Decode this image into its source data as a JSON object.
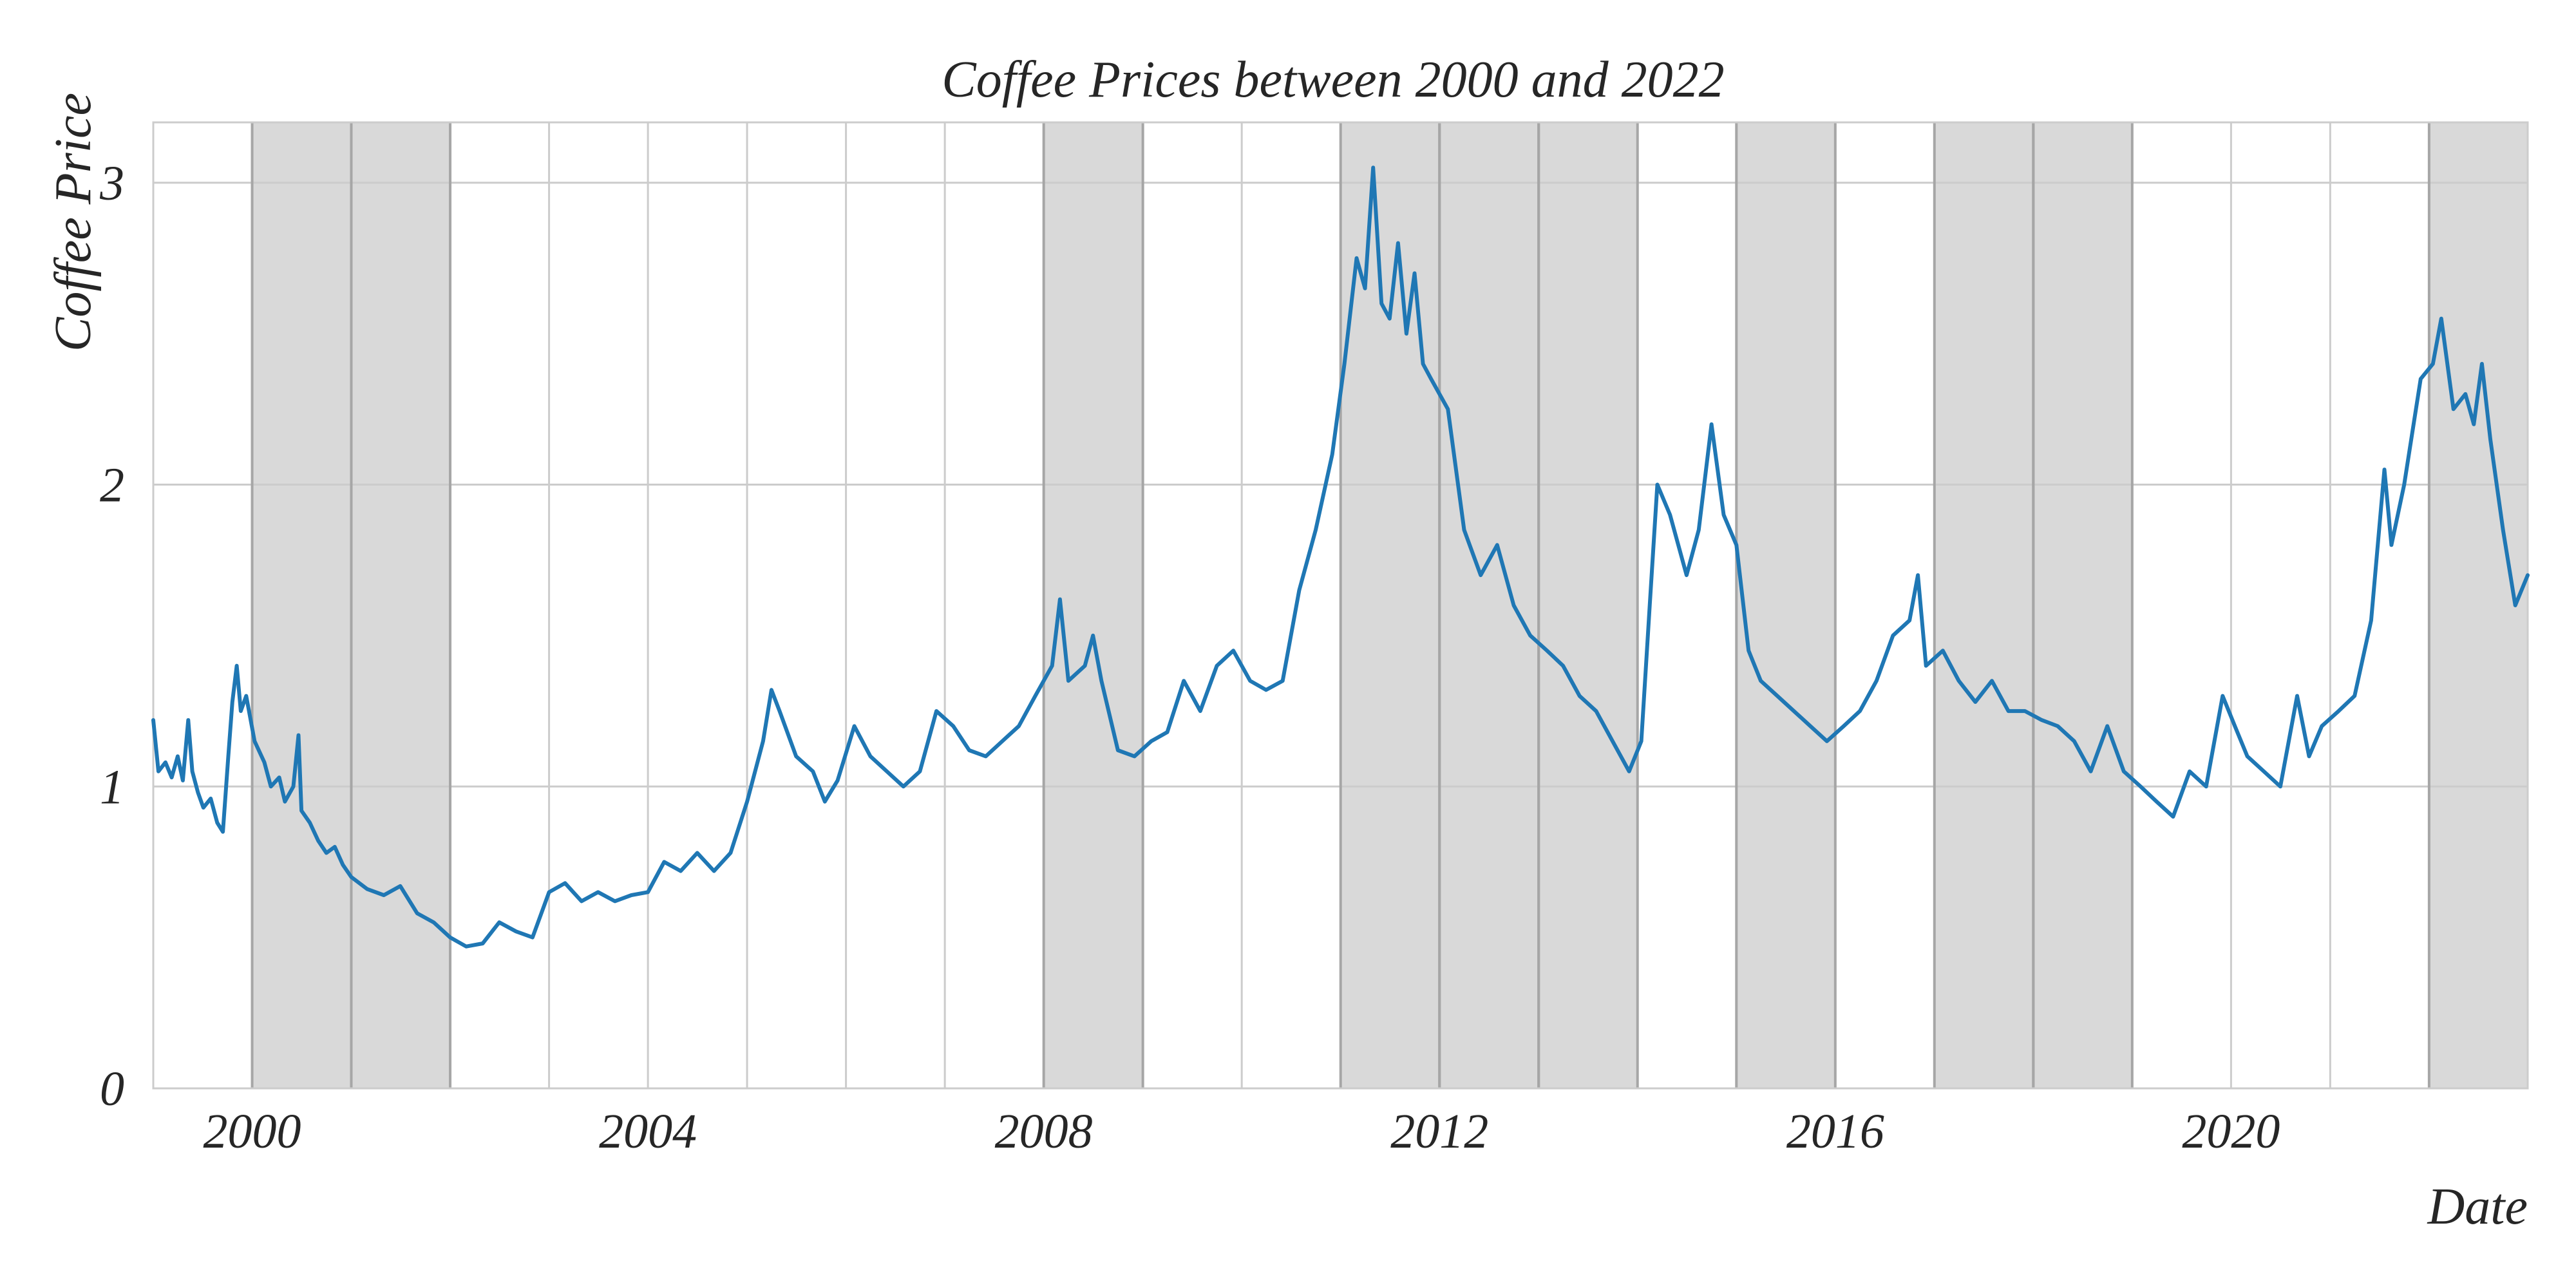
{
  "chart_data": {
    "type": "line",
    "title": "Coffee Prices between 2000 and 2022",
    "xlabel": "Date",
    "ylabel": "Coffee Price",
    "xlim": [
      "1999-01-01",
      "2022-12-31"
    ],
    "ylim": [
      0,
      3.2
    ],
    "xticks": [
      {
        "value": "2000-01-01",
        "label": "2000"
      },
      {
        "value": "2004-01-01",
        "label": "2004"
      },
      {
        "value": "2008-01-01",
        "label": "2008"
      },
      {
        "value": "2012-01-01",
        "label": "2012"
      },
      {
        "value": "2016-01-01",
        "label": "2016"
      },
      {
        "value": "2020-01-01",
        "label": "2020"
      }
    ],
    "xgrid_years": [
      2000,
      2001,
      2002,
      2003,
      2004,
      2005,
      2006,
      2007,
      2008,
      2009,
      2010,
      2011,
      2012,
      2013,
      2014,
      2015,
      2016,
      2017,
      2018,
      2019,
      2020,
      2021,
      2022
    ],
    "yticks": [
      {
        "value": 0,
        "label": "0"
      },
      {
        "value": 1,
        "label": "1"
      },
      {
        "value": 2,
        "label": "2"
      },
      {
        "value": 3,
        "label": "3"
      }
    ],
    "grid": true,
    "shaded_years": [
      2000,
      2001,
      2008,
      2011,
      2012,
      2013,
      2015,
      2017,
      2018,
      2022
    ],
    "series": [
      {
        "color": "#1f77b4",
        "points": [
          [
            "1999-01-01",
            1.22
          ],
          [
            "1999-01-20",
            1.05
          ],
          [
            "1999-02-15",
            1.08
          ],
          [
            "1999-03-10",
            1.03
          ],
          [
            "1999-04-01",
            1.1
          ],
          [
            "1999-04-20",
            1.02
          ],
          [
            "1999-05-10",
            1.22
          ],
          [
            "1999-05-25",
            1.05
          ],
          [
            "1999-06-15",
            0.98
          ],
          [
            "1999-07-05",
            0.93
          ],
          [
            "1999-08-01",
            0.96
          ],
          [
            "1999-08-25",
            0.88
          ],
          [
            "1999-09-15",
            0.85
          ],
          [
            "1999-10-05",
            1.1
          ],
          [
            "1999-10-20",
            1.28
          ],
          [
            "1999-11-05",
            1.4
          ],
          [
            "1999-11-20",
            1.25
          ],
          [
            "1999-12-10",
            1.3
          ],
          [
            "2000-01-10",
            1.15
          ],
          [
            "2000-02-15",
            1.08
          ],
          [
            "2000-03-10",
            1.0
          ],
          [
            "2000-04-10",
            1.03
          ],
          [
            "2000-05-01",
            0.95
          ],
          [
            "2000-06-01",
            1.0
          ],
          [
            "2000-06-20",
            1.17
          ],
          [
            "2000-07-01",
            0.92
          ],
          [
            "2000-08-01",
            0.88
          ],
          [
            "2000-09-01",
            0.82
          ],
          [
            "2000-10-01",
            0.78
          ],
          [
            "2000-11-01",
            0.8
          ],
          [
            "2000-12-01",
            0.74
          ],
          [
            "2001-01-01",
            0.7
          ],
          [
            "2001-03-01",
            0.66
          ],
          [
            "2001-05-01",
            0.64
          ],
          [
            "2001-07-01",
            0.67
          ],
          [
            "2001-09-01",
            0.58
          ],
          [
            "2001-11-01",
            0.55
          ],
          [
            "2002-01-01",
            0.5
          ],
          [
            "2002-03-01",
            0.47
          ],
          [
            "2002-05-01",
            0.48
          ],
          [
            "2002-07-01",
            0.55
          ],
          [
            "2002-09-01",
            0.52
          ],
          [
            "2002-11-01",
            0.5
          ],
          [
            "2003-01-01",
            0.65
          ],
          [
            "2003-03-01",
            0.68
          ],
          [
            "2003-05-01",
            0.62
          ],
          [
            "2003-07-01",
            0.65
          ],
          [
            "2003-09-01",
            0.62
          ],
          [
            "2003-11-01",
            0.64
          ],
          [
            "2004-01-01",
            0.65
          ],
          [
            "2004-03-01",
            0.75
          ],
          [
            "2004-05-01",
            0.72
          ],
          [
            "2004-07-01",
            0.78
          ],
          [
            "2004-09-01",
            0.72
          ],
          [
            "2004-11-01",
            0.78
          ],
          [
            "2005-01-01",
            0.95
          ],
          [
            "2005-03-01",
            1.15
          ],
          [
            "2005-04-01",
            1.32
          ],
          [
            "2005-05-01",
            1.25
          ],
          [
            "2005-07-01",
            1.1
          ],
          [
            "2005-09-01",
            1.05
          ],
          [
            "2005-10-15",
            0.95
          ],
          [
            "2005-12-01",
            1.02
          ],
          [
            "2006-02-01",
            1.2
          ],
          [
            "2006-04-01",
            1.1
          ],
          [
            "2006-06-01",
            1.05
          ],
          [
            "2006-08-01",
            1.0
          ],
          [
            "2006-10-01",
            1.05
          ],
          [
            "2006-12-01",
            1.25
          ],
          [
            "2007-02-01",
            1.2
          ],
          [
            "2007-04-01",
            1.12
          ],
          [
            "2007-06-01",
            1.1
          ],
          [
            "2007-08-01",
            1.15
          ],
          [
            "2007-10-01",
            1.2
          ],
          [
            "2007-12-01",
            1.3
          ],
          [
            "2008-02-01",
            1.4
          ],
          [
            "2008-03-01",
            1.62
          ],
          [
            "2008-04-01",
            1.35
          ],
          [
            "2008-06-01",
            1.4
          ],
          [
            "2008-07-01",
            1.5
          ],
          [
            "2008-08-01",
            1.35
          ],
          [
            "2008-10-01",
            1.12
          ],
          [
            "2008-12-01",
            1.1
          ],
          [
            "2009-02-01",
            1.15
          ],
          [
            "2009-04-01",
            1.18
          ],
          [
            "2009-06-01",
            1.35
          ],
          [
            "2009-08-01",
            1.25
          ],
          [
            "2009-10-01",
            1.4
          ],
          [
            "2009-12-01",
            1.45
          ],
          [
            "2010-02-01",
            1.35
          ],
          [
            "2010-04-01",
            1.32
          ],
          [
            "2010-06-01",
            1.35
          ],
          [
            "2010-08-01",
            1.65
          ],
          [
            "2010-10-01",
            1.85
          ],
          [
            "2010-12-01",
            2.1
          ],
          [
            "2011-01-15",
            2.4
          ],
          [
            "2011-03-01",
            2.75
          ],
          [
            "2011-04-01",
            2.65
          ],
          [
            "2011-05-01",
            3.05
          ],
          [
            "2011-06-01",
            2.6
          ],
          [
            "2011-07-01",
            2.55
          ],
          [
            "2011-08-01",
            2.8
          ],
          [
            "2011-09-01",
            2.5
          ],
          [
            "2011-10-01",
            2.7
          ],
          [
            "2011-11-01",
            2.4
          ],
          [
            "2011-12-01",
            2.35
          ],
          [
            "2012-02-01",
            2.25
          ],
          [
            "2012-04-01",
            1.85
          ],
          [
            "2012-06-01",
            1.7
          ],
          [
            "2012-08-01",
            1.8
          ],
          [
            "2012-10-01",
            1.6
          ],
          [
            "2012-12-01",
            1.5
          ],
          [
            "2013-02-01",
            1.45
          ],
          [
            "2013-04-01",
            1.4
          ],
          [
            "2013-06-01",
            1.3
          ],
          [
            "2013-08-01",
            1.25
          ],
          [
            "2013-10-01",
            1.15
          ],
          [
            "2013-12-01",
            1.05
          ],
          [
            "2014-01-15",
            1.15
          ],
          [
            "2014-02-15",
            1.6
          ],
          [
            "2014-03-15",
            2.0
          ],
          [
            "2014-05-01",
            1.9
          ],
          [
            "2014-07-01",
            1.7
          ],
          [
            "2014-08-15",
            1.85
          ],
          [
            "2014-10-01",
            2.2
          ],
          [
            "2014-11-15",
            1.9
          ],
          [
            "2015-01-01",
            1.8
          ],
          [
            "2015-02-15",
            1.45
          ],
          [
            "2015-04-01",
            1.35
          ],
          [
            "2015-06-01",
            1.3
          ],
          [
            "2015-08-01",
            1.25
          ],
          [
            "2015-10-01",
            1.2
          ],
          [
            "2015-12-01",
            1.15
          ],
          [
            "2016-02-01",
            1.2
          ],
          [
            "2016-04-01",
            1.25
          ],
          [
            "2016-06-01",
            1.35
          ],
          [
            "2016-08-01",
            1.5
          ],
          [
            "2016-10-01",
            1.55
          ],
          [
            "2016-11-01",
            1.7
          ],
          [
            "2016-12-01",
            1.4
          ],
          [
            "2017-02-01",
            1.45
          ],
          [
            "2017-04-01",
            1.35
          ],
          [
            "2017-06-01",
            1.28
          ],
          [
            "2017-08-01",
            1.35
          ],
          [
            "2017-10-01",
            1.25
          ],
          [
            "2017-12-01",
            1.25
          ],
          [
            "2018-02-01",
            1.22
          ],
          [
            "2018-04-01",
            1.2
          ],
          [
            "2018-06-01",
            1.15
          ],
          [
            "2018-08-01",
            1.05
          ],
          [
            "2018-10-01",
            1.2
          ],
          [
            "2018-12-01",
            1.05
          ],
          [
            "2019-02-01",
            1.0
          ],
          [
            "2019-04-01",
            0.95
          ],
          [
            "2019-06-01",
            0.9
          ],
          [
            "2019-08-01",
            1.05
          ],
          [
            "2019-10-01",
            1.0
          ],
          [
            "2019-12-01",
            1.3
          ],
          [
            "2020-01-15",
            1.2
          ],
          [
            "2020-03-01",
            1.1
          ],
          [
            "2020-05-01",
            1.05
          ],
          [
            "2020-07-01",
            1.0
          ],
          [
            "2020-09-01",
            1.3
          ],
          [
            "2020-10-15",
            1.1
          ],
          [
            "2020-12-01",
            1.2
          ],
          [
            "2021-02-01",
            1.25
          ],
          [
            "2021-04-01",
            1.3
          ],
          [
            "2021-06-01",
            1.55
          ],
          [
            "2021-07-20",
            2.05
          ],
          [
            "2021-08-15",
            1.8
          ],
          [
            "2021-10-01",
            2.0
          ],
          [
            "2021-12-01",
            2.35
          ],
          [
            "2022-01-15",
            2.4
          ],
          [
            "2022-02-15",
            2.55
          ],
          [
            "2022-04-01",
            2.25
          ],
          [
            "2022-05-15",
            2.3
          ],
          [
            "2022-06-15",
            2.2
          ],
          [
            "2022-07-15",
            2.4
          ],
          [
            "2022-08-15",
            2.15
          ],
          [
            "2022-10-01",
            1.85
          ],
          [
            "2022-11-15",
            1.6
          ],
          [
            "2022-12-31",
            1.7
          ]
        ]
      }
    ]
  }
}
